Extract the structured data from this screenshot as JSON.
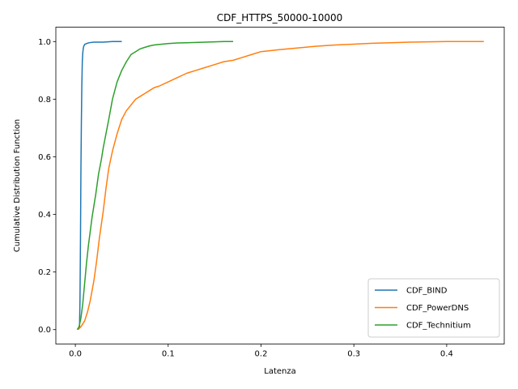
{
  "chart_data": {
    "type": "line",
    "title": "CDF_HTTPS_50000-10000",
    "xlabel": "Latenza",
    "ylabel": "Cumulative Distribution Function",
    "xlim": [
      -0.021,
      0.462
    ],
    "ylim": [
      -0.05,
      1.05
    ],
    "xticks": [
      0.0,
      0.1,
      0.2,
      0.3,
      0.4
    ],
    "xtick_labels": [
      "0.0",
      "0.1",
      "0.2",
      "0.3",
      "0.4"
    ],
    "yticks": [
      0.0,
      0.2,
      0.4,
      0.6,
      0.8,
      1.0
    ],
    "ytick_labels": [
      "0.0",
      "0.2",
      "0.4",
      "0.6",
      "0.8",
      "1.0"
    ],
    "grid": false,
    "legend_position": "lower-right",
    "series": [
      {
        "name": "CDF_BIND",
        "color": "#1f77b4",
        "x": [
          0.003,
          0.0045,
          0.005,
          0.0055,
          0.006,
          0.0065,
          0.007,
          0.0075,
          0.008,
          0.0085,
          0.009,
          0.01,
          0.012,
          0.015,
          0.02,
          0.03,
          0.035,
          0.04,
          0.045,
          0.05
        ],
        "y": [
          0.0,
          0.01,
          0.1,
          0.3,
          0.55,
          0.72,
          0.85,
          0.93,
          0.96,
          0.975,
          0.983,
          0.99,
          0.993,
          0.996,
          0.998,
          0.998,
          0.999,
          1.0,
          1.0,
          1.0
        ]
      },
      {
        "name": "CDF_PowerDNS",
        "color": "#ff7f0e",
        "x": [
          0.003,
          0.006,
          0.01,
          0.013,
          0.016,
          0.02,
          0.023,
          0.026,
          0.03,
          0.033,
          0.036,
          0.04,
          0.045,
          0.05,
          0.055,
          0.06,
          0.065,
          0.07,
          0.075,
          0.08,
          0.085,
          0.09,
          0.1,
          0.11,
          0.12,
          0.13,
          0.14,
          0.15,
          0.16,
          0.17,
          0.18,
          0.19,
          0.2,
          0.22,
          0.24,
          0.26,
          0.28,
          0.3,
          0.32,
          0.34,
          0.36,
          0.38,
          0.4,
          0.42,
          0.44
        ],
        "y": [
          0.0,
          0.01,
          0.03,
          0.06,
          0.1,
          0.17,
          0.24,
          0.32,
          0.41,
          0.49,
          0.56,
          0.62,
          0.68,
          0.73,
          0.76,
          0.78,
          0.8,
          0.81,
          0.82,
          0.83,
          0.84,
          0.845,
          0.86,
          0.875,
          0.89,
          0.9,
          0.91,
          0.92,
          0.93,
          0.935,
          0.945,
          0.955,
          0.965,
          0.972,
          0.978,
          0.984,
          0.988,
          0.991,
          0.994,
          0.996,
          0.998,
          0.999,
          1.0,
          1.0,
          1.0
        ]
      },
      {
        "name": "CDF_Technitium",
        "color": "#2ca02c",
        "x": [
          0.002,
          0.004,
          0.006,
          0.008,
          0.01,
          0.012,
          0.014,
          0.016,
          0.018,
          0.02,
          0.022,
          0.025,
          0.028,
          0.03,
          0.033,
          0.036,
          0.04,
          0.045,
          0.05,
          0.055,
          0.06,
          0.065,
          0.07,
          0.075,
          0.08,
          0.085,
          0.09,
          0.1,
          0.11,
          0.12,
          0.13,
          0.14,
          0.15,
          0.16,
          0.17
        ],
        "y": [
          0.0,
          0.01,
          0.04,
          0.09,
          0.16,
          0.23,
          0.29,
          0.34,
          0.39,
          0.43,
          0.47,
          0.54,
          0.59,
          0.63,
          0.68,
          0.73,
          0.8,
          0.86,
          0.9,
          0.93,
          0.955,
          0.965,
          0.975,
          0.98,
          0.985,
          0.988,
          0.99,
          0.993,
          0.995,
          0.996,
          0.997,
          0.998,
          0.999,
          1.0,
          1.0
        ]
      }
    ]
  }
}
